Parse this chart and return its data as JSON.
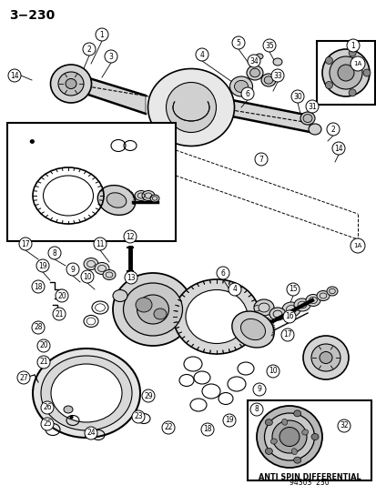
{
  "title": "3−230",
  "bg_color": "#ffffff",
  "fig_width": 4.14,
  "fig_height": 5.33,
  "dpi": 100,
  "bottom_text1": "ANTI SPIN DIFFERENTIAL",
  "bottom_text2": "94303  230",
  "callouts_top": [
    [
      112,
      38,
      "1"
    ],
    [
      98,
      55,
      "2"
    ],
    [
      122,
      62,
      "3"
    ],
    [
      222,
      62,
      "4"
    ],
    [
      264,
      48,
      "5"
    ],
    [
      273,
      103,
      "6"
    ],
    [
      287,
      175,
      "7"
    ],
    [
      280,
      68,
      "34"
    ],
    [
      296,
      50,
      "35"
    ],
    [
      305,
      83,
      "33"
    ],
    [
      327,
      105,
      "30"
    ],
    [
      342,
      115,
      "31"
    ],
    [
      366,
      140,
      "2"
    ],
    [
      372,
      162,
      "14"
    ],
    [
      388,
      50,
      "1"
    ],
    [
      16,
      83,
      "14"
    ]
  ],
  "callouts_lower_left": [
    [
      28,
      268,
      "17"
    ],
    [
      58,
      278,
      "8"
    ],
    [
      110,
      268,
      "11"
    ],
    [
      143,
      262,
      "12"
    ],
    [
      45,
      292,
      "19"
    ],
    [
      78,
      295,
      "9"
    ],
    [
      93,
      302,
      "10"
    ],
    [
      42,
      315,
      "18"
    ],
    [
      68,
      322,
      "20"
    ],
    [
      65,
      342,
      "21"
    ],
    [
      43,
      358,
      "28"
    ],
    [
      48,
      378,
      "20"
    ],
    [
      48,
      395,
      "21"
    ],
    [
      27,
      415,
      "27"
    ],
    [
      52,
      445,
      "26"
    ],
    [
      53,
      463,
      "25"
    ],
    [
      97,
      474,
      "24"
    ],
    [
      152,
      455,
      "23"
    ],
    [
      162,
      432,
      "29"
    ],
    [
      185,
      468,
      "22"
    ],
    [
      145,
      302,
      "13"
    ]
  ],
  "callouts_lower_right": [
    [
      245,
      300,
      "6"
    ],
    [
      260,
      318,
      "4"
    ],
    [
      323,
      318,
      "15"
    ],
    [
      320,
      345,
      "16"
    ],
    [
      318,
      365,
      "17"
    ],
    [
      300,
      408,
      "10"
    ],
    [
      285,
      428,
      "9"
    ],
    [
      280,
      448,
      "8"
    ],
    [
      252,
      460,
      "19"
    ],
    [
      230,
      470,
      "18"
    ]
  ],
  "inset_bottom_right_label": "32"
}
